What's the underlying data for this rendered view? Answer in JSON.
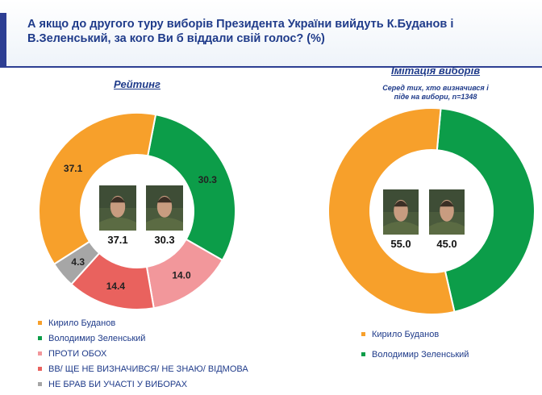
{
  "header": {
    "title": "А якщо до другого туру виборів Президента України вийдуть К.Буданов і В.Зеленський, за кого Ви б віддали свій голос? (%)"
  },
  "colors": {
    "budanov": "#f7a02b",
    "zelensky": "#0c9d49",
    "against_both": "#f2979b",
    "undecided": "#e9625e",
    "no_participation": "#a6a6a6",
    "text_blue": "#1f3b8a",
    "portrait_bg": "#4a5a3c"
  },
  "chart_data": [
    {
      "type": "pie",
      "title": "Рейтинг",
      "subtitle": "",
      "slices": [
        {
          "label": "Володимир Зеленський",
          "value": 30.3,
          "value_label": "30.3",
          "color": "#0c9d49"
        },
        {
          "label": "ПРОТИ ОБОХ",
          "value": 14.0,
          "value_label": "14.0",
          "color": "#f2979b"
        },
        {
          "label": "ВВ/ ЩЕ НЕ ВИЗНАЧИВСЯ/ НЕ ЗНАЮ/ ВІДМОВА",
          "value": 14.4,
          "value_label": "14.4",
          "color": "#e9625e"
        },
        {
          "label": "НЕ БРАВ БИ УЧАСТІ У ВИБОРАХ",
          "value": 4.3,
          "value_label": "4.3",
          "color": "#a6a6a6"
        },
        {
          "label": "Кирило Буданов",
          "value": 37.1,
          "value_label": "37.1",
          "color": "#f7a02b"
        }
      ],
      "legend": [
        {
          "label": "Кирило Буданов",
          "color": "#f7a02b"
        },
        {
          "label": "Володимир Зеленський",
          "color": "#0c9d49"
        },
        {
          "label": "ПРОТИ ОБОХ",
          "color": "#f2979b"
        },
        {
          "label": "ВВ/ ЩЕ НЕ ВИЗНАЧИВСЯ/ НЕ ЗНАЮ/ ВІДМОВА",
          "color": "#e9625e"
        },
        {
          "label": "НЕ БРАВ БИ УЧАСТІ У ВИБОРАХ",
          "color": "#a6a6a6"
        }
      ],
      "legend_position": "bottom-left",
      "center_labels": [
        "37.1",
        "30.3"
      ]
    },
    {
      "type": "pie",
      "title": "Імітація виборів",
      "subtitle": "Серед тих, хто визначився і піде на вибори, n=1348",
      "slices": [
        {
          "label": "Володимир Зеленський",
          "value": 45.0,
          "value_label": "",
          "color": "#0c9d49"
        },
        {
          "label": "Кирило Буданов",
          "value": 55.0,
          "value_label": "",
          "color": "#f7a02b"
        }
      ],
      "legend": [
        {
          "label": "Кирило Буданов",
          "color": "#f7a02b"
        },
        {
          "label": "Володимир Зеленський",
          "color": "#0c9d49"
        }
      ],
      "legend_position": "bottom-left",
      "center_labels": [
        "55.0",
        "45.0"
      ]
    }
  ]
}
